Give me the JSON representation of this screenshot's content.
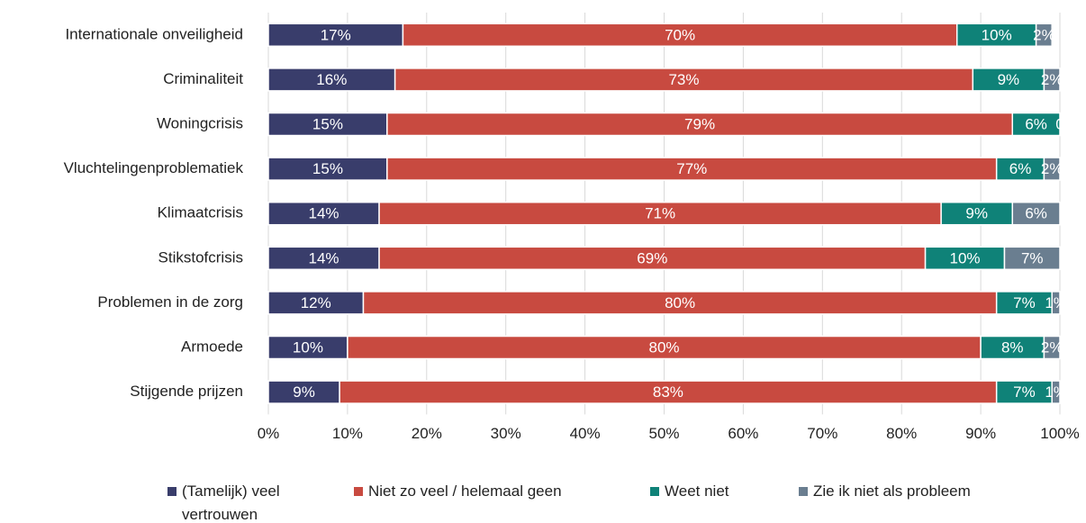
{
  "chart_data": {
    "type": "stacked_bar_horizontal",
    "categories": [
      "Internationale onveiligheid",
      "Criminaliteit",
      "Woningcrisis",
      "Vluchtelingenproblematiek",
      "Klimaatcrisis",
      "Stikstofcrisis",
      "Problemen in de zorg",
      "Armoede",
      "Stijgende prijzen"
    ],
    "series": [
      {
        "name": "(Tamelijk) veel vertrouwen",
        "color": "#393d6b",
        "values": [
          17,
          16,
          15,
          15,
          14,
          14,
          12,
          10,
          9
        ],
        "value_labels": [
          "17%",
          "16%",
          "15%",
          "15%",
          "14%",
          "14%",
          "12%",
          "10%",
          "9%"
        ]
      },
      {
        "name": "Niet zo veel / helemaal geen",
        "color": "#c84a40",
        "values": [
          70,
          73,
          79,
          77,
          71,
          69,
          80,
          80,
          83
        ],
        "value_labels": [
          "70%",
          "73%",
          "79%",
          "77%",
          "71%",
          "69%",
          "80%",
          "80%",
          "83%"
        ]
      },
      {
        "name": "Weet niet",
        "color": "#0f8278",
        "values": [
          10,
          9,
          6,
          6,
          9,
          10,
          7,
          8,
          7
        ],
        "value_labels": [
          "10%",
          "9%",
          "6%",
          "6%",
          "9%",
          "10%",
          "7%",
          "8%",
          "7%"
        ]
      },
      {
        "name": "Zie ik niet als probleem",
        "color": "#6a7e90",
        "values": [
          2,
          2,
          0,
          2,
          6,
          7,
          1,
          2,
          1
        ],
        "value_labels": [
          "2%",
          "2%",
          "0",
          "2%",
          "6%",
          "7%",
          "1%",
          "2%",
          "1%"
        ]
      }
    ],
    "xlim": [
      0,
      100
    ],
    "xticks": [
      {
        "value": 0,
        "label": "0%"
      },
      {
        "value": 10,
        "label": "10%"
      },
      {
        "value": 20,
        "label": "20%"
      },
      {
        "value": 30,
        "label": "30%"
      },
      {
        "value": 40,
        "label": "40%"
      },
      {
        "value": 50,
        "label": "50%"
      },
      {
        "value": 60,
        "label": "60%"
      },
      {
        "value": 70,
        "label": "70%"
      },
      {
        "value": 80,
        "label": "80%"
      },
      {
        "value": 90,
        "label": "90%"
      },
      {
        "value": 100,
        "label": "100%"
      }
    ],
    "grid": true,
    "legend": "bottom"
  }
}
